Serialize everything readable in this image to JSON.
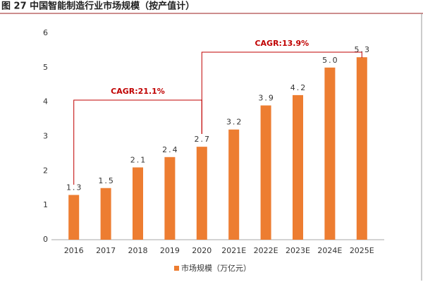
{
  "chart_data": {
    "type": "bar",
    "title": "图 27 中国智能制造行业市场规模（按产值计）",
    "categories": [
      "2016",
      "2017",
      "2018",
      "2019",
      "2020",
      "2021E",
      "2022E",
      "2023E",
      "2024E",
      "2025E"
    ],
    "series": [
      {
        "name": "市场规模（万亿元）",
        "color": "#ed7d31",
        "values": [
          1.3,
          1.5,
          2.1,
          2.4,
          2.7,
          3.2,
          3.9,
          4.2,
          5.0,
          5.3
        ]
      }
    ],
    "value_labels": [
      "1.3",
      "1.5",
      "2.1",
      "2.4",
      "2.7",
      "3.2",
      "3.9",
      "4.2",
      "5.0",
      "5.3"
    ],
    "ylim": [
      0,
      6
    ],
    "yticks": [
      0,
      1,
      2,
      3,
      4,
      5,
      6
    ],
    "grid": false,
    "legend": "bottom",
    "annotations": [
      "CAGR:21.1%",
      "CAGR:13.9%"
    ]
  }
}
